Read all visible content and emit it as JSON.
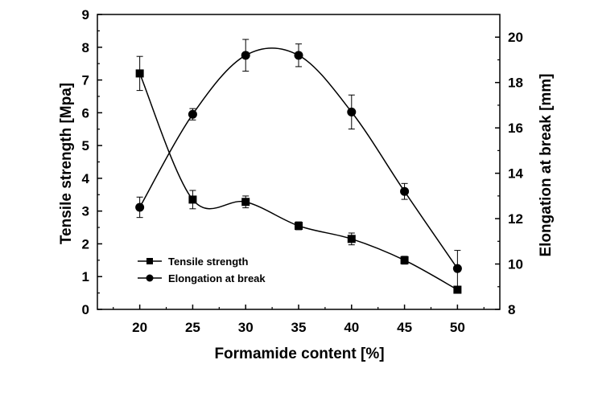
{
  "chart_data": {
    "type": "line",
    "title": "",
    "xlabel": "Formamide content [%]",
    "ylabel_left": "Tensile strength  [Mpa]",
    "ylabel_right": "Elongation at break [mm]",
    "x": [
      20,
      25,
      30,
      35,
      40,
      45,
      50
    ],
    "xlim": [
      16,
      54
    ],
    "ylim_left": [
      0,
      9
    ],
    "ylim_right": [
      8,
      21
    ],
    "x_ticks": [
      "20",
      "25",
      "30",
      "35",
      "40",
      "45",
      "50"
    ],
    "y_left_ticks": [
      "0",
      "1",
      "2",
      "3",
      "4",
      "5",
      "6",
      "7",
      "8",
      "9"
    ],
    "y_right_ticks": [
      "8",
      "10",
      "12",
      "14",
      "16",
      "18",
      "20"
    ],
    "grid": false,
    "legend_position": "lower-left",
    "series": [
      {
        "name": "Tensile strength",
        "axis": "left",
        "marker": "square",
        "values": [
          7.2,
          3.35,
          3.28,
          2.55,
          2.15,
          1.5,
          0.6
        ],
        "errors": [
          0.52,
          0.28,
          0.18,
          0.12,
          0.18,
          0.12,
          0.0
        ]
      },
      {
        "name": "Elongation at break",
        "axis": "right",
        "marker": "circle",
        "values": [
          12.5,
          16.6,
          19.2,
          19.2,
          16.7,
          13.2,
          9.8
        ],
        "errors": [
          0.45,
          0.25,
          0.7,
          0.5,
          0.75,
          0.35,
          0.8
        ]
      }
    ]
  }
}
